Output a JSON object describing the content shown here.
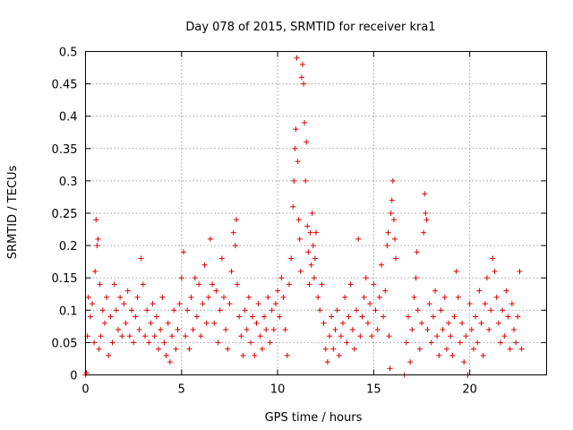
{
  "chart_data": {
    "type": "scatter",
    "title": "Day 078 of 2015, SRMTID for receiver kra1",
    "xlabel": "GPS time / hours",
    "ylabel": "SRMTID / TECUs",
    "xlim": [
      0,
      24
    ],
    "ylim": [
      0,
      0.5
    ],
    "x_ticks": [
      0,
      5,
      10,
      15,
      20
    ],
    "x_tick_labels": [
      "0",
      "5",
      "10",
      "15",
      "20"
    ],
    "y_ticks": [
      0,
      0.05,
      0.1,
      0.15,
      0.2,
      0.25,
      0.3,
      0.35,
      0.4,
      0.45,
      0.5
    ],
    "y_tick_labels": [
      "0",
      "0.05",
      "0.1",
      "0.15",
      "0.2",
      "0.25",
      "0.3",
      "0.35",
      "0.4",
      "0.45",
      "0.5"
    ],
    "grid": true,
    "marker": "plus",
    "color": "#e00000",
    "series": [
      {
        "name": "SRMTID",
        "points": [
          [
            0.0,
            0.0
          ],
          [
            0.05,
            0.003
          ],
          [
            0.1,
            0.06
          ],
          [
            0.15,
            0.12
          ],
          [
            0.25,
            0.09
          ],
          [
            0.35,
            0.11
          ],
          [
            0.45,
            0.05
          ],
          [
            0.5,
            0.16
          ],
          [
            0.55,
            0.24
          ],
          [
            0.6,
            0.2
          ],
          [
            0.65,
            0.21
          ],
          [
            0.7,
            0.04
          ],
          [
            0.75,
            0.14
          ],
          [
            0.8,
            0.06
          ],
          [
            0.9,
            0.1
          ],
          [
            1.0,
            0.08
          ],
          [
            1.1,
            0.12
          ],
          [
            1.2,
            0.03
          ],
          [
            1.3,
            0.09
          ],
          [
            1.4,
            0.05
          ],
          [
            1.5,
            0.14
          ],
          [
            1.6,
            0.1
          ],
          [
            1.7,
            0.07
          ],
          [
            1.8,
            0.12
          ],
          [
            1.9,
            0.06
          ],
          [
            2.0,
            0.11
          ],
          [
            2.1,
            0.08
          ],
          [
            2.2,
            0.13
          ],
          [
            2.3,
            0.06
          ],
          [
            2.4,
            0.1
          ],
          [
            2.5,
            0.05
          ],
          [
            2.6,
            0.09
          ],
          [
            2.7,
            0.12
          ],
          [
            2.8,
            0.07
          ],
          [
            2.9,
            0.18
          ],
          [
            3.0,
            0.14
          ],
          [
            3.1,
            0.06
          ],
          [
            3.2,
            0.1
          ],
          [
            3.3,
            0.05
          ],
          [
            3.4,
            0.08
          ],
          [
            3.5,
            0.11
          ],
          [
            3.6,
            0.06
          ],
          [
            3.7,
            0.09
          ],
          [
            3.8,
            0.04
          ],
          [
            3.9,
            0.07
          ],
          [
            4.0,
            0.12
          ],
          [
            4.1,
            0.05
          ],
          [
            4.2,
            0.03
          ],
          [
            4.3,
            0.08
          ],
          [
            4.4,
            0.02
          ],
          [
            4.5,
            0.06
          ],
          [
            4.6,
            0.1
          ],
          [
            4.7,
            0.04
          ],
          [
            4.8,
            0.07
          ],
          [
            4.9,
            0.11
          ],
          [
            5.0,
            0.15
          ],
          [
            5.1,
            0.19
          ],
          [
            5.2,
            0.06
          ],
          [
            5.3,
            0.1
          ],
          [
            5.4,
            0.04
          ],
          [
            5.5,
            0.12
          ],
          [
            5.6,
            0.07
          ],
          [
            5.7,
            0.15
          ],
          [
            5.8,
            0.09
          ],
          [
            5.9,
            0.14
          ],
          [
            6.0,
            0.06
          ],
          [
            6.1,
            0.11
          ],
          [
            6.2,
            0.17
          ],
          [
            6.3,
            0.08
          ],
          [
            6.4,
            0.12
          ],
          [
            6.5,
            0.21
          ],
          [
            6.6,
            0.14
          ],
          [
            6.7,
            0.08
          ],
          [
            6.8,
            0.13
          ],
          [
            6.9,
            0.05
          ],
          [
            7.0,
            0.1
          ],
          [
            7.1,
            0.18
          ],
          [
            7.2,
            0.12
          ],
          [
            7.3,
            0.07
          ],
          [
            7.4,
            0.04
          ],
          [
            7.5,
            0.11
          ],
          [
            7.6,
            0.16
          ],
          [
            7.7,
            0.22
          ],
          [
            7.8,
            0.2
          ],
          [
            7.85,
            0.24
          ],
          [
            7.9,
            0.14
          ],
          [
            8.0,
            0.09
          ],
          [
            8.1,
            0.06
          ],
          [
            8.2,
            0.03
          ],
          [
            8.3,
            0.1
          ],
          [
            8.4,
            0.07
          ],
          [
            8.5,
            0.12
          ],
          [
            8.6,
            0.05
          ],
          [
            8.7,
            0.09
          ],
          [
            8.8,
            0.03
          ],
          [
            8.9,
            0.08
          ],
          [
            9.0,
            0.11
          ],
          [
            9.1,
            0.06
          ],
          [
            9.2,
            0.04
          ],
          [
            9.3,
            0.09
          ],
          [
            9.4,
            0.07
          ],
          [
            9.5,
            0.12
          ],
          [
            9.6,
            0.05
          ],
          [
            9.7,
            0.1
          ],
          [
            9.8,
            0.07
          ],
          [
            9.9,
            0.11
          ],
          [
            10.0,
            0.13
          ],
          [
            10.1,
            0.09
          ],
          [
            10.2,
            0.15
          ],
          [
            10.3,
            0.12
          ],
          [
            10.4,
            0.07
          ],
          [
            10.5,
            0.03
          ],
          [
            10.6,
            0.14
          ],
          [
            10.7,
            0.18
          ],
          [
            10.8,
            0.26
          ],
          [
            10.85,
            0.3
          ],
          [
            10.9,
            0.35
          ],
          [
            10.95,
            0.38
          ],
          [
            11.0,
            0.49
          ],
          [
            11.05,
            0.33
          ],
          [
            11.1,
            0.24
          ],
          [
            11.15,
            0.21
          ],
          [
            11.2,
            0.16
          ],
          [
            11.25,
            0.46
          ],
          [
            11.3,
            0.48
          ],
          [
            11.35,
            0.45
          ],
          [
            11.4,
            0.39
          ],
          [
            11.45,
            0.3
          ],
          [
            11.5,
            0.36
          ],
          [
            11.55,
            0.23
          ],
          [
            11.6,
            0.19
          ],
          [
            11.65,
            0.14
          ],
          [
            11.7,
            0.22
          ],
          [
            11.75,
            0.17
          ],
          [
            11.8,
            0.25
          ],
          [
            11.85,
            0.2
          ],
          [
            11.9,
            0.15
          ],
          [
            11.95,
            0.18
          ],
          [
            12.0,
            0.22
          ],
          [
            12.1,
            0.12
          ],
          [
            12.2,
            0.1
          ],
          [
            12.3,
            0.14
          ],
          [
            12.4,
            0.08
          ],
          [
            12.5,
            0.04
          ],
          [
            12.6,
            0.02
          ],
          [
            12.7,
            0.06
          ],
          [
            12.8,
            0.09
          ],
          [
            12.9,
            0.04
          ],
          [
            13.0,
            0.07
          ],
          [
            13.1,
            0.1
          ],
          [
            13.2,
            0.03
          ],
          [
            13.3,
            0.06
          ],
          [
            13.4,
            0.08
          ],
          [
            13.5,
            0.12
          ],
          [
            13.6,
            0.05
          ],
          [
            13.7,
            0.09
          ],
          [
            13.8,
            0.14
          ],
          [
            13.9,
            0.07
          ],
          [
            14.0,
            0.04
          ],
          [
            14.1,
            0.1
          ],
          [
            14.2,
            0.21
          ],
          [
            14.3,
            0.06
          ],
          [
            14.4,
            0.09
          ],
          [
            14.5,
            0.12
          ],
          [
            14.6,
            0.15
          ],
          [
            14.7,
            0.08
          ],
          [
            14.8,
            0.11
          ],
          [
            14.9,
            0.06
          ],
          [
            15.0,
            0.14
          ],
          [
            15.1,
            0.1
          ],
          [
            15.2,
            0.07
          ],
          [
            15.3,
            0.12
          ],
          [
            15.4,
            0.17
          ],
          [
            15.5,
            0.09
          ],
          [
            15.6,
            0.13
          ],
          [
            15.7,
            0.2
          ],
          [
            15.75,
            0.22
          ],
          [
            15.8,
            0.06
          ],
          [
            15.85,
            0.01
          ],
          [
            15.9,
            0.25
          ],
          [
            15.95,
            0.27
          ],
          [
            16.0,
            0.3
          ],
          [
            16.05,
            0.24
          ],
          [
            16.1,
            0.21
          ],
          [
            16.15,
            0.18
          ],
          [
            16.6,
            0.0
          ],
          [
            16.7,
            0.05
          ],
          [
            16.8,
            0.09
          ],
          [
            16.9,
            0.02
          ],
          [
            17.0,
            0.07
          ],
          [
            17.1,
            0.12
          ],
          [
            17.2,
            0.15
          ],
          [
            17.25,
            0.19
          ],
          [
            17.3,
            0.1
          ],
          [
            17.4,
            0.04
          ],
          [
            17.5,
            0.08
          ],
          [
            17.6,
            0.22
          ],
          [
            17.65,
            0.28
          ],
          [
            17.7,
            0.25
          ],
          [
            17.75,
            0.24
          ],
          [
            17.8,
            0.07
          ],
          [
            17.9,
            0.11
          ],
          [
            18.0,
            0.05
          ],
          [
            18.1,
            0.09
          ],
          [
            18.2,
            0.13
          ],
          [
            18.3,
            0.06
          ],
          [
            18.4,
            0.03
          ],
          [
            18.5,
            0.1
          ],
          [
            18.6,
            0.07
          ],
          [
            18.7,
            0.12
          ],
          [
            18.8,
            0.04
          ],
          [
            18.9,
            0.08
          ],
          [
            19.0,
            0.06
          ],
          [
            19.1,
            0.03
          ],
          [
            19.2,
            0.09
          ],
          [
            19.3,
            0.16
          ],
          [
            19.4,
            0.12
          ],
          [
            19.5,
            0.05
          ],
          [
            19.6,
            0.08
          ],
          [
            19.7,
            0.02
          ],
          [
            19.8,
            0.06
          ],
          [
            19.9,
            0.0
          ],
          [
            20.0,
            0.11
          ],
          [
            20.1,
            0.07
          ],
          [
            20.2,
            0.04
          ],
          [
            20.3,
            0.09
          ],
          [
            20.4,
            0.05
          ],
          [
            20.5,
            0.13
          ],
          [
            20.6,
            0.08
          ],
          [
            20.7,
            0.03
          ],
          [
            20.8,
            0.11
          ],
          [
            20.9,
            0.15
          ],
          [
            21.0,
            0.07
          ],
          [
            21.1,
            0.1
          ],
          [
            21.2,
            0.18
          ],
          [
            21.3,
            0.16
          ],
          [
            21.4,
            0.12
          ],
          [
            21.5,
            0.08
          ],
          [
            21.6,
            0.05
          ],
          [
            21.7,
            0.1
          ],
          [
            21.8,
            0.06
          ],
          [
            21.9,
            0.13
          ],
          [
            22.0,
            0.09
          ],
          [
            22.1,
            0.04
          ],
          [
            22.2,
            0.11
          ],
          [
            22.3,
            0.07
          ],
          [
            22.4,
            0.05
          ],
          [
            22.5,
            0.09
          ],
          [
            22.6,
            0.16
          ],
          [
            22.7,
            0.04
          ]
        ]
      }
    ]
  }
}
